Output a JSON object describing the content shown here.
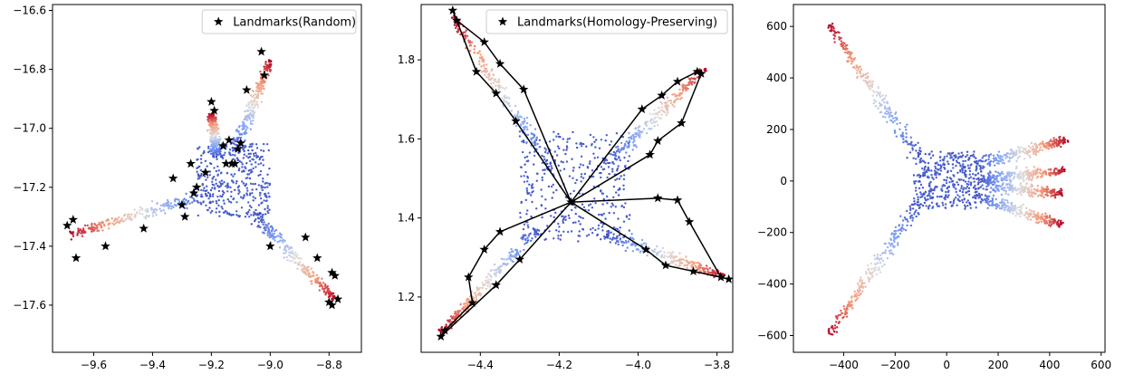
{
  "chart_data": [
    {
      "type": "scatter",
      "xlim": [
        -9.74,
        -8.69
      ],
      "ylim": [
        -17.76,
        -16.58
      ],
      "xticks": [
        -9.6,
        -9.4,
        -9.2,
        -9.0,
        -8.8
      ],
      "yticks": [
        -16.6,
        -16.8,
        -17.0,
        -17.2,
        -17.4,
        -17.6
      ],
      "xtick_labels": [
        "−9.6",
        "−9.4",
        "−9.2",
        "−9.0",
        "−8.8"
      ],
      "ytick_labels": [
        "−16.6",
        "−16.8",
        "−17.0",
        "−17.2",
        "−17.4",
        "−17.6"
      ],
      "legend": {
        "label": "Landmarks(Random)",
        "placement": "top-right"
      },
      "grid": false,
      "colormap": "coolwarm",
      "shape": {
        "core": {
          "x": [
            -9.25,
            -9.0
          ],
          "y": [
            -17.3,
            -17.05
          ]
        },
        "arms": [
          {
            "start": [
              -9.2,
              -17.22
            ],
            "tip": [
              -9.68,
              -17.36
            ],
            "len": 0.49
          },
          {
            "start": [
              -9.05,
              -17.3
            ],
            "tip": [
              -8.78,
              -17.58
            ],
            "len": 0.45
          },
          {
            "start": [
              -9.12,
              -17.08
            ],
            "tip": [
              -9.0,
              -16.77
            ],
            "len": 0.38
          },
          {
            "start": [
              -9.18,
              -17.1
            ],
            "tip": [
              -9.2,
              -16.95
            ],
            "len": 0.18
          }
        ]
      },
      "landmarks": [
        [
          -9.69,
          -17.33
        ],
        [
          -9.67,
          -17.31
        ],
        [
          -9.66,
          -17.44
        ],
        [
          -9.56,
          -17.4
        ],
        [
          -9.43,
          -17.34
        ],
        [
          -9.33,
          -17.17
        ],
        [
          -9.3,
          -17.26
        ],
        [
          -9.29,
          -17.3
        ],
        [
          -9.27,
          -17.12
        ],
        [
          -9.26,
          -17.22
        ],
        [
          -9.25,
          -17.2
        ],
        [
          -9.22,
          -17.15
        ],
        [
          -9.2,
          -16.91
        ],
        [
          -9.19,
          -16.94
        ],
        [
          -9.16,
          -17.06
        ],
        [
          -9.15,
          -17.12
        ],
        [
          -9.14,
          -17.04
        ],
        [
          -9.13,
          -17.12
        ],
        [
          -9.12,
          -17.12
        ],
        [
          -9.11,
          -17.07
        ],
        [
          -9.1,
          -17.05
        ],
        [
          -9.08,
          -16.87
        ],
        [
          -9.03,
          -16.74
        ],
        [
          -9.02,
          -16.82
        ],
        [
          -9.0,
          -17.4
        ],
        [
          -8.88,
          -17.37
        ],
        [
          -8.84,
          -17.44
        ],
        [
          -8.79,
          -17.49
        ],
        [
          -8.78,
          -17.5
        ],
        [
          -8.8,
          -17.59
        ],
        [
          -8.79,
          -17.6
        ],
        [
          -8.77,
          -17.58
        ]
      ]
    },
    {
      "type": "scatter",
      "xlim": [
        -4.55,
        -3.76
      ],
      "ylim": [
        1.06,
        1.94
      ],
      "xticks": [
        -4.4,
        -4.2,
        -4.0,
        -3.8
      ],
      "yticks": [
        1.2,
        1.4,
        1.6,
        1.8
      ],
      "xtick_labels": [
        "−4.4",
        "−4.2",
        "−4.0",
        "−3.8"
      ],
      "ytick_labels": [
        "1.2",
        "1.4",
        "1.6",
        "1.8"
      ],
      "legend": {
        "label": "Landmarks(Homology-Preserving)",
        "placement": "top-right"
      },
      "grid": false,
      "colormap": "coolwarm",
      "center": [
        -4.17,
        1.44
      ],
      "shape": {
        "core": {
          "x": [
            -4.3,
            -4.02
          ],
          "y": [
            1.34,
            1.62
          ]
        },
        "arms": [
          {
            "start": [
              -4.22,
              1.52
            ],
            "tip": [
              -4.47,
              1.91
            ],
            "len": 0.45
          },
          {
            "start": [
              -4.08,
              1.53
            ],
            "tip": [
              -3.83,
              1.78
            ],
            "len": 0.42
          },
          {
            "start": [
              -4.25,
              1.38
            ],
            "tip": [
              -4.5,
              1.11
            ],
            "len": 0.42
          },
          {
            "start": [
              -4.08,
              1.36
            ],
            "tip": [
              -3.78,
              1.25
            ],
            "len": 0.4
          }
        ]
      },
      "landmarks": [
        [
          -4.47,
          1.925
        ],
        [
          -4.46,
          1.9
        ],
        [
          -4.39,
          1.845
        ],
        [
          -4.35,
          1.79
        ],
        [
          -4.41,
          1.77
        ],
        [
          -4.29,
          1.725
        ],
        [
          -4.36,
          1.715
        ],
        [
          -4.31,
          1.645
        ],
        [
          -3.85,
          1.77
        ],
        [
          -3.84,
          1.765
        ],
        [
          -3.9,
          1.745
        ],
        [
          -3.94,
          1.71
        ],
        [
          -3.99,
          1.675
        ],
        [
          -3.89,
          1.64
        ],
        [
          -3.95,
          1.595
        ],
        [
          -3.97,
          1.56
        ],
        [
          -4.17,
          1.44
        ],
        [
          -4.35,
          1.365
        ],
        [
          -4.39,
          1.32
        ],
        [
          -4.3,
          1.295
        ],
        [
          -4.43,
          1.25
        ],
        [
          -4.36,
          1.23
        ],
        [
          -4.42,
          1.185
        ],
        [
          -4.49,
          1.115
        ],
        [
          -4.5,
          1.1
        ],
        [
          -3.95,
          1.45
        ],
        [
          -3.9,
          1.445
        ],
        [
          -3.87,
          1.39
        ],
        [
          -3.98,
          1.32
        ],
        [
          -3.93,
          1.28
        ],
        [
          -3.86,
          1.265
        ],
        [
          -3.79,
          1.25
        ],
        [
          -3.77,
          1.245
        ]
      ],
      "edges": [
        [
          0,
          1
        ],
        [
          1,
          2
        ],
        [
          2,
          3
        ],
        [
          3,
          5
        ],
        [
          5,
          16
        ],
        [
          1,
          4
        ],
        [
          4,
          6
        ],
        [
          6,
          7
        ],
        [
          7,
          16
        ],
        [
          8,
          9
        ],
        [
          8,
          10
        ],
        [
          10,
          11
        ],
        [
          11,
          12
        ],
        [
          12,
          16
        ],
        [
          9,
          13
        ],
        [
          13,
          14
        ],
        [
          14,
          15
        ],
        [
          15,
          16
        ],
        [
          16,
          17
        ],
        [
          17,
          18
        ],
        [
          18,
          20
        ],
        [
          20,
          22
        ],
        [
          22,
          23
        ],
        [
          23,
          24
        ],
        [
          16,
          19
        ],
        [
          19,
          21
        ],
        [
          21,
          24
        ],
        [
          16,
          25
        ],
        [
          25,
          26
        ],
        [
          26,
          27
        ],
        [
          27,
          31
        ],
        [
          16,
          28
        ],
        [
          28,
          29
        ],
        [
          29,
          30
        ],
        [
          30,
          31
        ],
        [
          31,
          32
        ]
      ]
    },
    {
      "type": "scatter",
      "xlim": [
        -595,
        615
      ],
      "ylim": [
        -665,
        685
      ],
      "xticks": [
        -400,
        -200,
        0,
        200,
        400,
        600
      ],
      "yticks": [
        600,
        400,
        200,
        0,
        -200,
        -400,
        -600
      ],
      "xtick_labels": [
        "−400",
        "−200",
        "0",
        "200",
        "400",
        "600"
      ],
      "ytick_labels": [
        "600",
        "400",
        "200",
        "0",
        "−200",
        "−400",
        "−600"
      ],
      "grid": false,
      "colormap": "coolwarm",
      "shape": {
        "core": {
          "x": [
            -130,
            120
          ],
          "y": [
            -110,
            115
          ]
        },
        "arms": [
          {
            "start": [
              -110,
              90
            ],
            "tip": [
              -455,
              605
            ],
            "len": 620
          },
          {
            "start": [
              -110,
              -90
            ],
            "tip": [
              -455,
              -595
            ],
            "len": 610
          },
          {
            "start": [
              110,
              60
            ],
            "tip": [
              470,
              160
            ],
            "len": 370
          },
          {
            "start": [
              110,
              -60
            ],
            "tip": [
              450,
              -170
            ],
            "len": 355
          },
          {
            "start": [
              120,
              10
            ],
            "tip": [
              460,
              40
            ],
            "len": 340
          },
          {
            "start": [
              120,
              -10
            ],
            "tip": [
              450,
              -50
            ],
            "len": 330
          }
        ]
      }
    }
  ]
}
